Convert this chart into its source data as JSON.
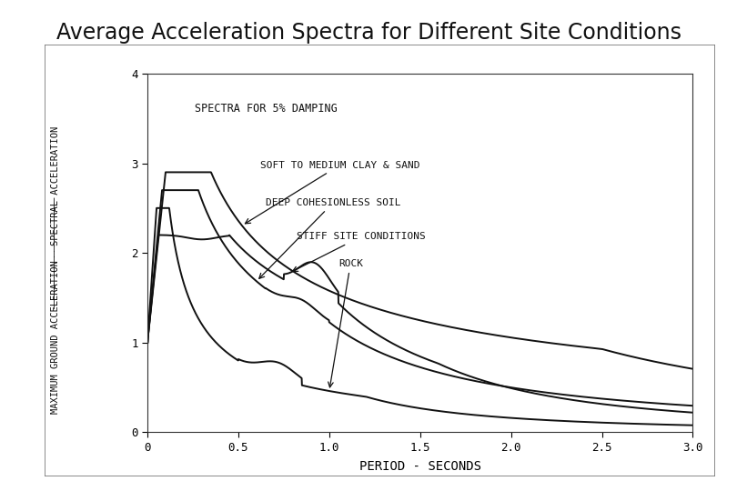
{
  "title": "Average Acceleration Spectra for Different Site Conditions",
  "xlabel": "PERIOD - SECONDS",
  "annotation_text": "SPECTRA FOR 5% DAMPING",
  "xlim": [
    0,
    3.0
  ],
  "ylim": [
    0,
    4.0
  ],
  "xticks": [
    0,
    0.5,
    1.0,
    1.5,
    2.0,
    2.5,
    3.0
  ],
  "yticks": [
    0,
    1,
    2,
    3,
    4
  ],
  "curve_labels": [
    "SOFT TO MEDIUM CLAY & SAND",
    "DEEP COHESIONLESS SOIL",
    "STIFF SITE CONDITIONS",
    "ROCK"
  ],
  "background_color": "#ffffff",
  "line_color": "#111111",
  "title_fontsize": 17,
  "axis_fontsize": 9,
  "label_fontsize": 8
}
